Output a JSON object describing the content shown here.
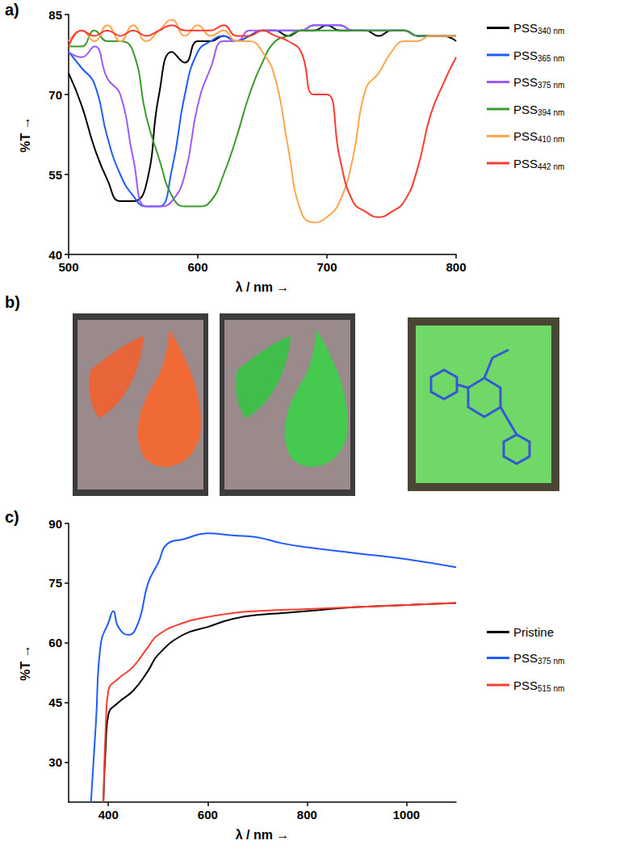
{
  "chart_data": [
    {
      "type": "line",
      "title": "a)",
      "xlabel": "λ / nm →",
      "ylabel": "%T →",
      "xlim": [
        500,
        800
      ],
      "xticks": [
        500,
        600,
        700,
        800
      ],
      "ylim": [
        40,
        85
      ],
      "yticks": [
        40,
        55,
        70,
        85
      ],
      "grid": false,
      "legend": "right",
      "x": [
        500,
        510,
        520,
        530,
        540,
        550,
        560,
        570,
        580,
        590,
        600,
        610,
        620,
        630,
        640,
        650,
        660,
        670,
        680,
        690,
        700,
        710,
        720,
        730,
        740,
        750,
        760,
        770,
        780,
        790,
        800
      ],
      "series": [
        {
          "name": "PSS340 nm",
          "color": "#000000",
          "values": [
            74,
            68,
            60,
            54,
            50,
            50,
            53,
            70,
            78,
            76,
            80,
            80,
            81,
            80,
            81,
            82,
            82,
            81,
            82,
            82,
            83,
            82,
            82,
            82,
            81,
            82,
            82,
            81,
            81,
            81,
            80
          ]
        },
        {
          "name": "PSS365 nm",
          "color": "#1f5bff",
          "values": [
            78,
            75,
            72,
            62,
            55,
            51,
            49,
            49,
            56,
            70,
            78,
            80,
            81,
            80,
            81,
            82,
            82,
            82,
            82,
            83,
            83,
            83,
            82,
            82,
            82,
            82,
            82,
            81,
            81,
            81,
            81
          ]
        },
        {
          "name": "PSS375 nm",
          "color": "#9b59ff",
          "values": [
            78,
            77,
            79,
            73,
            70,
            58,
            49,
            49,
            50,
            55,
            68,
            75,
            80,
            80,
            82,
            82,
            82,
            82,
            82,
            83,
            83,
            83,
            82,
            82,
            82,
            82,
            82,
            81,
            81,
            81,
            81
          ]
        },
        {
          "name": "PSS394 nm",
          "color": "#3a9a2a",
          "values": [
            79,
            79,
            82,
            80,
            80,
            78,
            66,
            58,
            51,
            49,
            49,
            50,
            55,
            62,
            70,
            76,
            80,
            81,
            82,
            82,
            82,
            82,
            82,
            82,
            82,
            82,
            82,
            81,
            81,
            81,
            81
          ]
        },
        {
          "name": "PSS410 nm",
          "color": "#ffa64d",
          "values": [
            80,
            82,
            80,
            83,
            80,
            83,
            80,
            82,
            84,
            81,
            83,
            81,
            82,
            80,
            80,
            78,
            73,
            60,
            48,
            46,
            47,
            50,
            58,
            71,
            74,
            78,
            80,
            80,
            81,
            81,
            81
          ]
        },
        {
          "name": "PSS442 nm",
          "color": "#ff3b2f",
          "values": [
            79,
            82,
            81,
            82,
            81,
            82,
            81,
            82,
            83,
            82,
            82,
            82,
            83,
            81,
            81,
            82,
            81,
            80,
            78,
            70,
            70,
            58,
            50,
            48,
            47,
            48,
            50,
            56,
            66,
            72,
            77
          ]
        }
      ]
    },
    {
      "type": "line",
      "title": "c)",
      "xlabel": "λ / nm →",
      "ylabel": "%T →",
      "xlim": [
        320,
        1100
      ],
      "xticks": [
        400,
        600,
        800,
        1000
      ],
      "ylim": [
        20,
        90
      ],
      "yticks": [
        30,
        45,
        60,
        75,
        90
      ],
      "grid": false,
      "legend": "right",
      "series": [
        {
          "name": "Pristine",
          "color": "#000000",
          "x": [
            390,
            395,
            400,
            420,
            450,
            480,
            500,
            550,
            600,
            650,
            700,
            750,
            800,
            900,
            1000,
            1100
          ],
          "values": [
            20,
            35,
            42,
            45,
            48,
            53,
            57,
            62,
            64,
            66,
            67,
            67.5,
            68,
            69,
            69.5,
            70
          ]
        },
        {
          "name": "PSS375 nm",
          "color": "#1f5bff",
          "x": [
            365,
            375,
            385,
            400,
            410,
            420,
            440,
            460,
            480,
            500,
            520,
            550,
            600,
            650,
            700,
            750,
            800,
            900,
            1000,
            1100
          ],
          "values": [
            20,
            40,
            60,
            65,
            68,
            64,
            62,
            65,
            75,
            80,
            85,
            86,
            87.5,
            87,
            86.5,
            85,
            84,
            82.5,
            81,
            79
          ]
        },
        {
          "name": "PSS515 nm",
          "color": "#ff3b2f",
          "x": [
            390,
            395,
            400,
            420,
            450,
            480,
            500,
            550,
            600,
            650,
            700,
            800,
            900,
            1000,
            1100
          ],
          "values": [
            20,
            40,
            48,
            51,
            54,
            59,
            62,
            65,
            66.5,
            67.5,
            68,
            68.5,
            69,
            69.5,
            70
          ]
        }
      ]
    }
  ],
  "panel_b": {
    "label": "b)"
  }
}
